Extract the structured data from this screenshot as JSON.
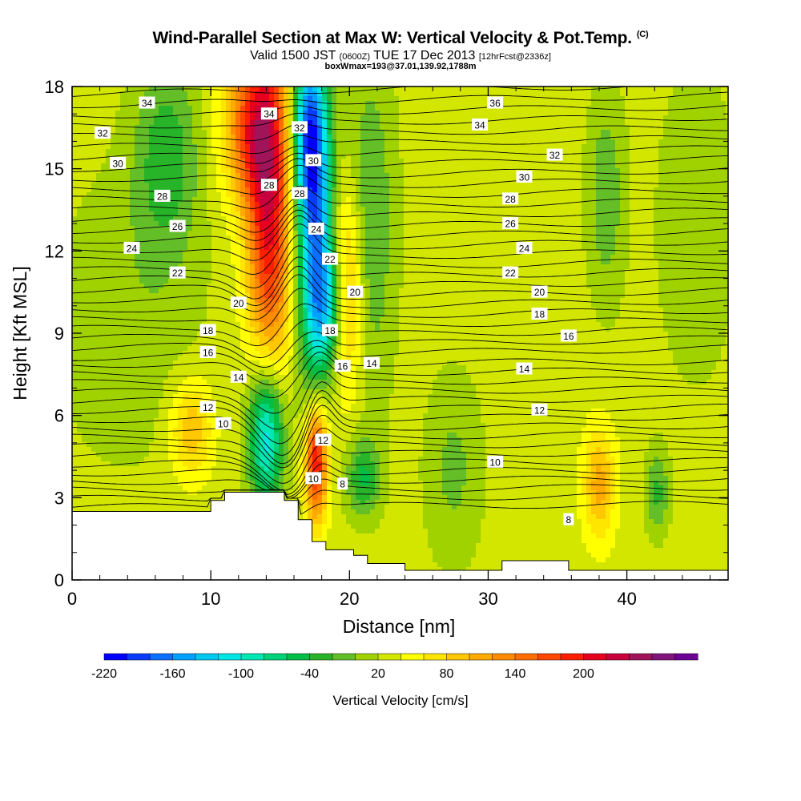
{
  "header": {
    "title": "Wind-Parallel Section at Max W: Vertical Velocity & Pot.Temp.",
    "copyright": "(C)",
    "subtitle_main_a": "Valid 1500 JST",
    "subtitle_small_a": "(0600Z)",
    "subtitle_main_b": "TUE 17 Dec 2013",
    "subtitle_small_b": "[12hrFcst@2336z]",
    "line3": "boxWmax=193@37.01,139.92,1788m"
  },
  "colorbar": {
    "label": "Vertical Velocity [cm/s]",
    "colors": [
      "#0000ff",
      "#0a3cff",
      "#0a6eff",
      "#00a0ff",
      "#00c8f0",
      "#00e6e6",
      "#00e6b4",
      "#00d278",
      "#00be46",
      "#28b428",
      "#64be28",
      "#a0d200",
      "#d2e600",
      "#ffff00",
      "#ffe600",
      "#ffc800",
      "#ffaa00",
      "#ff8c00",
      "#ff6e00",
      "#ff4600",
      "#ff1e00",
      "#e6001e",
      "#c8003c",
      "#a0145a",
      "#82147d",
      "#6e0096"
    ],
    "tick_labels": [
      "-220",
      "-160",
      "-100",
      "-40",
      "20",
      "80",
      "140",
      "200"
    ]
  },
  "chart_data": {
    "type": "heatmap",
    "title": "Wind-Parallel Section at Max W: Vertical Velocity & Pot.Temp.",
    "xlabel": "Distance [nm]",
    "ylabel": "Height [Kft MSL]",
    "xlim": [
      0,
      47.3
    ],
    "ylim": [
      0,
      18
    ],
    "x_ticks": [
      0,
      10,
      20,
      30,
      40
    ],
    "y_ticks": [
      0,
      3,
      6,
      9,
      12,
      15,
      18
    ],
    "grid": false,
    "vertical_velocity_cms": {
      "background": 0,
      "features": [
        {
          "x": 14.2,
          "y": 13.5,
          "sx": 1.1,
          "sy": 4.5,
          "v": 175
        },
        {
          "x": 12.8,
          "y": 16.5,
          "sx": 1.4,
          "sy": 2.0,
          "v": 120
        },
        {
          "x": 17.5,
          "y": 13.0,
          "sx": 0.9,
          "sy": 4.0,
          "v": -185
        },
        {
          "x": 17.0,
          "y": 16.5,
          "sx": 0.8,
          "sy": 2.0,
          "v": -130
        },
        {
          "x": 18.5,
          "y": 10.0,
          "sx": 0.9,
          "sy": 1.6,
          "v": -90
        },
        {
          "x": 14.0,
          "y": 5.3,
          "sx": 0.9,
          "sy": 1.9,
          "v": -165
        },
        {
          "x": 17.6,
          "y": 4.3,
          "sx": 0.55,
          "sy": 1.5,
          "v": 185
        },
        {
          "x": 19.8,
          "y": 10.5,
          "sx": 0.8,
          "sy": 2.6,
          "v": 95
        },
        {
          "x": 21.0,
          "y": 3.7,
          "sx": 0.9,
          "sy": 1.0,
          "v": -70
        },
        {
          "x": 6.8,
          "y": 15.5,
          "sx": 1.7,
          "sy": 2.6,
          "v": -60
        },
        {
          "x": 21.5,
          "y": 13.0,
          "sx": 1.3,
          "sy": 4.5,
          "v": -50
        },
        {
          "x": 38.0,
          "y": 3.5,
          "sx": 0.8,
          "sy": 1.4,
          "v": 80
        },
        {
          "x": 42.2,
          "y": 3.2,
          "sx": 0.6,
          "sy": 1.1,
          "v": -55
        },
        {
          "x": 38.5,
          "y": 14.0,
          "sx": 1.0,
          "sy": 2.8,
          "v": -45
        },
        {
          "x": 8.6,
          "y": 5.5,
          "sx": 1.1,
          "sy": 1.3,
          "v": 70
        },
        {
          "x": 27.5,
          "y": 4.0,
          "sx": 1.5,
          "sy": 2.5,
          "v": -35
        },
        {
          "x": 4.0,
          "y": 9.5,
          "sx": 4.0,
          "sy": 4.0,
          "v": -25
        },
        {
          "x": 45.0,
          "y": 13.0,
          "sx": 2.0,
          "sy": 4.0,
          "v": -30
        }
      ]
    },
    "terrain_kft": [
      {
        "x": 0,
        "h": 2.5
      },
      {
        "x": 10.0,
        "h": 2.5
      },
      {
        "x": 10.0,
        "h": 2.9
      },
      {
        "x": 11.0,
        "h": 2.9
      },
      {
        "x": 11.0,
        "h": 3.2
      },
      {
        "x": 15.3,
        "h": 3.2
      },
      {
        "x": 15.3,
        "h": 2.9
      },
      {
        "x": 16.3,
        "h": 2.9
      },
      {
        "x": 16.3,
        "h": 2.2
      },
      {
        "x": 17.3,
        "h": 2.2
      },
      {
        "x": 17.3,
        "h": 1.4
      },
      {
        "x": 18.3,
        "h": 1.4
      },
      {
        "x": 18.3,
        "h": 1.1
      },
      {
        "x": 20.3,
        "h": 1.1
      },
      {
        "x": 20.3,
        "h": 0.9
      },
      {
        "x": 21.3,
        "h": 0.9
      },
      {
        "x": 21.3,
        "h": 0.6
      },
      {
        "x": 24.0,
        "h": 0.6
      },
      {
        "x": 24.0,
        "h": 0.35
      },
      {
        "x": 31.0,
        "h": 0.35
      },
      {
        "x": 31.0,
        "h": 0.7
      },
      {
        "x": 35.8,
        "h": 0.7
      },
      {
        "x": 35.8,
        "h": 0.35
      },
      {
        "x": 47.3,
        "h": 0.35
      }
    ],
    "potential_temperature_labels": [
      {
        "x": 5.4,
        "y": 17.4,
        "text": "34"
      },
      {
        "x": 2.2,
        "y": 16.3,
        "text": "32"
      },
      {
        "x": 3.3,
        "y": 15.2,
        "text": "30"
      },
      {
        "x": 6.5,
        "y": 14.0,
        "text": "28"
      },
      {
        "x": 7.6,
        "y": 12.9,
        "text": "26"
      },
      {
        "x": 4.3,
        "y": 12.1,
        "text": "24"
      },
      {
        "x": 7.6,
        "y": 11.2,
        "text": "22"
      },
      {
        "x": 12.0,
        "y": 10.1,
        "text": "20"
      },
      {
        "x": 9.8,
        "y": 9.1,
        "text": "18"
      },
      {
        "x": 9.8,
        "y": 8.3,
        "text": "16"
      },
      {
        "x": 12.0,
        "y": 7.4,
        "text": "14"
      },
      {
        "x": 9.8,
        "y": 6.3,
        "text": "12"
      },
      {
        "x": 10.9,
        "y": 5.7,
        "text": "10"
      },
      {
        "x": 14.2,
        "y": 17.0,
        "text": "34"
      },
      {
        "x": 16.4,
        "y": 16.5,
        "text": "32"
      },
      {
        "x": 17.4,
        "y": 15.3,
        "text": "30"
      },
      {
        "x": 14.2,
        "y": 14.4,
        "text": "28"
      },
      {
        "x": 16.4,
        "y": 14.1,
        "text": "28"
      },
      {
        "x": 17.6,
        "y": 12.8,
        "text": "24"
      },
      {
        "x": 18.6,
        "y": 11.7,
        "text": "22"
      },
      {
        "x": 20.4,
        "y": 10.5,
        "text": "20"
      },
      {
        "x": 18.6,
        "y": 9.1,
        "text": "18"
      },
      {
        "x": 19.5,
        "y": 7.8,
        "text": "16"
      },
      {
        "x": 21.6,
        "y": 7.9,
        "text": "14"
      },
      {
        "x": 18.1,
        "y": 5.1,
        "text": "12"
      },
      {
        "x": 17.4,
        "y": 3.7,
        "text": "10"
      },
      {
        "x": 19.5,
        "y": 3.5,
        "text": "8"
      },
      {
        "x": 30.5,
        "y": 17.4,
        "text": "36"
      },
      {
        "x": 29.4,
        "y": 16.6,
        "text": "34"
      },
      {
        "x": 34.8,
        "y": 15.5,
        "text": "32"
      },
      {
        "x": 32.6,
        "y": 14.7,
        "text": "30"
      },
      {
        "x": 31.6,
        "y": 13.9,
        "text": "28"
      },
      {
        "x": 31.6,
        "y": 13.0,
        "text": "26"
      },
      {
        "x": 32.6,
        "y": 12.1,
        "text": "24"
      },
      {
        "x": 31.6,
        "y": 11.2,
        "text": "22"
      },
      {
        "x": 33.7,
        "y": 10.5,
        "text": "20"
      },
      {
        "x": 33.7,
        "y": 9.7,
        "text": "18"
      },
      {
        "x": 35.8,
        "y": 8.9,
        "text": "16"
      },
      {
        "x": 32.6,
        "y": 7.7,
        "text": "14"
      },
      {
        "x": 33.7,
        "y": 6.2,
        "text": "12"
      },
      {
        "x": 30.5,
        "y": 4.3,
        "text": "10"
      },
      {
        "x": 35.8,
        "y": 2.2,
        "text": "8"
      }
    ]
  }
}
